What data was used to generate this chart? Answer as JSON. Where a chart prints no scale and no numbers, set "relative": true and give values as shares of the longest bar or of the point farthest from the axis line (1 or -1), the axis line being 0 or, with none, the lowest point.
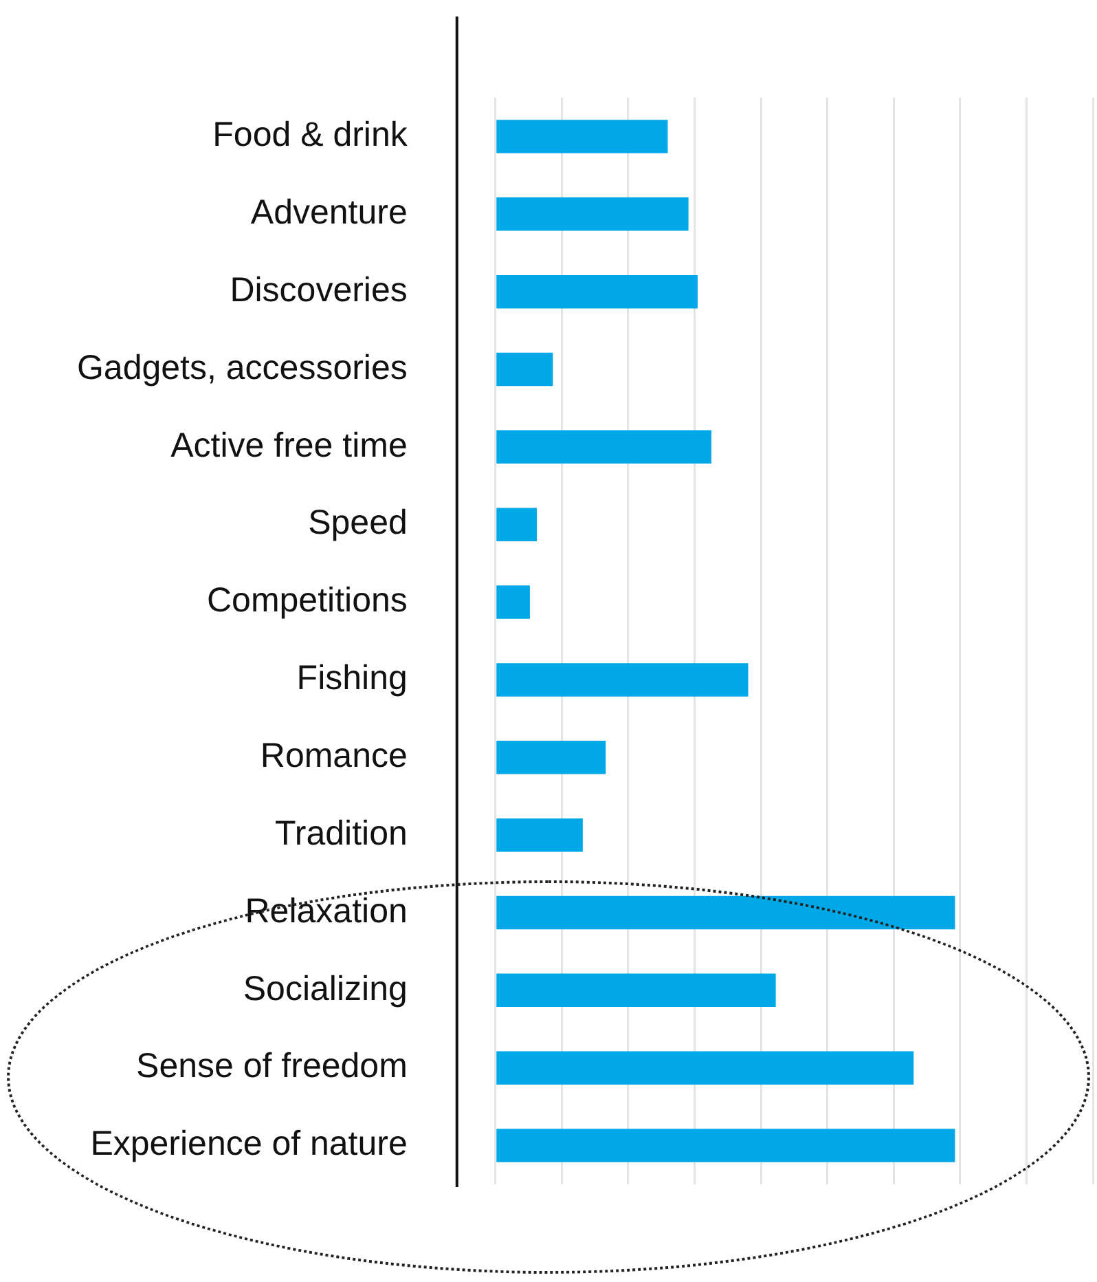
{
  "chart_data": {
    "type": "bar",
    "orientation": "horizontal",
    "relative": true,
    "grid": "x",
    "color": "#00a8e8",
    "categories": [
      "Food & drink",
      "Adventure",
      "Discoveries",
      "Gadgets, accessories",
      "Active free time",
      "Speed",
      "Competitions",
      "Fishing",
      "Romance",
      "Tradition",
      "Relaxation",
      "Socializing",
      "Sense of freedom",
      "Experience of nature"
    ],
    "values": [
      0.375,
      0.42,
      0.44,
      0.125,
      0.47,
      0.09,
      0.075,
      0.55,
      0.24,
      0.19,
      1,
      0.61,
      0.91,
      1
    ]
  }
}
